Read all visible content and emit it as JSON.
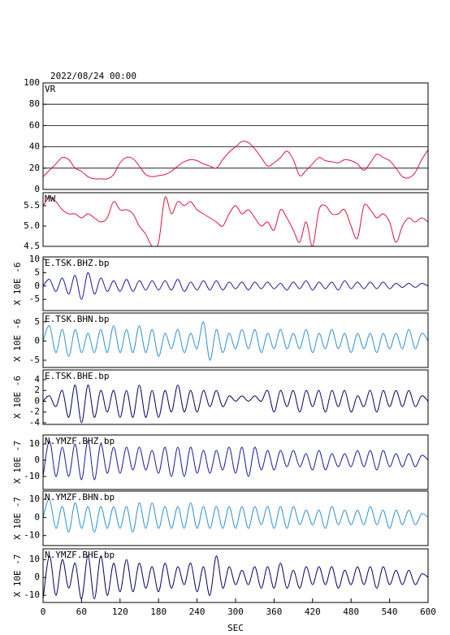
{
  "chart_data": [
    {
      "type": "line",
      "title": "2022/08/24 00:00",
      "label": "VR",
      "color": "#dc143c",
      "grid": true,
      "x": [
        0,
        10,
        20,
        30,
        40,
        50,
        60,
        70,
        80,
        90,
        100,
        110,
        120,
        130,
        140,
        150,
        160,
        170,
        180,
        190,
        200,
        210,
        220,
        230,
        240,
        250,
        260,
        270,
        280,
        290,
        300,
        310,
        320,
        330,
        340,
        350,
        360,
        370,
        380,
        390,
        400,
        410,
        420,
        430,
        440,
        450,
        460,
        470,
        480,
        490,
        500,
        510,
        520,
        530,
        540,
        550,
        560,
        570,
        580,
        590,
        600
      ],
      "values": [
        12,
        18,
        24,
        30,
        28,
        20,
        17,
        12,
        10,
        10,
        10,
        14,
        25,
        30,
        29,
        22,
        14,
        12,
        13,
        14,
        17,
        22,
        26,
        28,
        27,
        24,
        22,
        20,
        28,
        35,
        40,
        45,
        44,
        38,
        30,
        22,
        25,
        30,
        36,
        28,
        13,
        18,
        24,
        30,
        27,
        26,
        25,
        28,
        27,
        24,
        18,
        25,
        33,
        30,
        27,
        20,
        12,
        11,
        16,
        28,
        37
      ],
      "xlim": [
        0,
        600
      ],
      "ylim": [
        0,
        100
      ],
      "yticks": [
        0,
        20,
        40,
        60,
        80,
        100
      ]
    },
    {
      "type": "line",
      "label": "MW",
      "color": "#dc143c",
      "x": [
        0,
        10,
        20,
        30,
        40,
        50,
        60,
        70,
        80,
        90,
        100,
        110,
        120,
        130,
        140,
        150,
        160,
        170,
        180,
        190,
        200,
        210,
        220,
        230,
        240,
        250,
        260,
        270,
        280,
        290,
        300,
        310,
        320,
        330,
        340,
        350,
        360,
        370,
        380,
        390,
        400,
        410,
        420,
        430,
        440,
        450,
        460,
        470,
        480,
        490,
        500,
        510,
        520,
        530,
        540,
        550,
        560,
        570,
        580,
        590,
        600
      ],
      "values": [
        5.5,
        5.7,
        5.6,
        5.4,
        5.3,
        5.3,
        5.2,
        5.3,
        5.2,
        5.1,
        5.2,
        5.6,
        5.4,
        5.4,
        5.3,
        5.0,
        4.8,
        4.5,
        4.6,
        5.7,
        5.3,
        5.6,
        5.5,
        5.6,
        5.4,
        5.3,
        5.2,
        5.1,
        5.0,
        5.3,
        5.5,
        5.3,
        5.4,
        5.2,
        5.0,
        5.1,
        4.9,
        5.4,
        5.2,
        4.9,
        4.6,
        5.1,
        4.5,
        5.4,
        5.5,
        5.3,
        5.3,
        5.4,
        5.0,
        4.7,
        5.5,
        5.4,
        5.2,
        5.3,
        5.1,
        4.6,
        5.0,
        5.2,
        5.1,
        5.2,
        5.1
      ],
      "xlim": [
        0,
        600
      ],
      "ylim": [
        4.5,
        5.82
      ],
      "yticks": [
        4.5,
        {
          "value": 5,
          "label": "5.0"
        },
        5.5
      ]
    },
    {
      "type": "line",
      "label": "E.TSK.BHZ.bp",
      "ylabel": "X 10E -6",
      "color": "#1a1a9a",
      "x": [
        0,
        10,
        20,
        30,
        40,
        50,
        60,
        70,
        80,
        90,
        100,
        110,
        120,
        130,
        140,
        150,
        160,
        170,
        180,
        190,
        200,
        210,
        220,
        230,
        240,
        250,
        260,
        270,
        280,
        290,
        300,
        310,
        320,
        330,
        340,
        350,
        360,
        370,
        380,
        390,
        400,
        410,
        420,
        430,
        440,
        450,
        460,
        470,
        480,
        490,
        500,
        510,
        520,
        530,
        540,
        550,
        560,
        570,
        580,
        590,
        600
      ],
      "values": [
        0,
        2.5,
        -2,
        3,
        -3,
        4,
        -5,
        5,
        -3,
        3,
        -2,
        2,
        -2,
        2.5,
        -2,
        2,
        -1.5,
        2,
        -1.5,
        2,
        -1.5,
        2.5,
        -2,
        1.5,
        -1.5,
        2,
        -1.5,
        2,
        -1.5,
        1.5,
        -1,
        1.5,
        -1.5,
        1.5,
        -1,
        1.5,
        -1,
        1,
        -1.5,
        1.5,
        -1,
        2,
        -1.5,
        1.5,
        -1,
        1.5,
        -1.5,
        2,
        -1,
        1.5,
        -1,
        1.5,
        -1,
        1.5,
        -1,
        1,
        -0.5,
        1,
        -0.5,
        1,
        0
      ],
      "xlim": [
        0,
        600
      ],
      "ylim": [
        -9.2,
        10.9
      ],
      "yticks": [
        -5,
        0,
        5,
        10
      ]
    },
    {
      "type": "line",
      "label": "E.TSK.BHN.bp",
      "ylabel": "X 10E -6",
      "color": "#2f8fd0",
      "x": [
        0,
        10,
        20,
        30,
        40,
        50,
        60,
        70,
        80,
        90,
        100,
        110,
        120,
        130,
        140,
        150,
        160,
        170,
        180,
        190,
        200,
        210,
        220,
        230,
        240,
        250,
        260,
        270,
        280,
        290,
        300,
        310,
        320,
        330,
        340,
        350,
        360,
        370,
        380,
        390,
        400,
        410,
        420,
        430,
        440,
        450,
        460,
        470,
        480,
        490,
        500,
        510,
        520,
        530,
        540,
        550,
        560,
        570,
        580,
        590,
        600
      ],
      "values": [
        0,
        4,
        -3,
        3,
        -4,
        3,
        -3,
        2,
        -3,
        3,
        -3,
        4,
        -3,
        3,
        -3,
        4,
        -3,
        3,
        -4,
        2,
        -2,
        3,
        -3,
        2,
        -2,
        5,
        -5,
        3,
        -3,
        2,
        -2,
        3,
        -2,
        3,
        -3,
        2,
        -2,
        3,
        -2,
        2,
        -2,
        3,
        -3,
        2,
        -2,
        3,
        -2,
        2,
        -3,
        2,
        -2,
        2,
        -3,
        2,
        -2,
        2,
        -2,
        3,
        -2,
        2,
        0
      ],
      "xlim": [
        0,
        600
      ],
      "ylim": [
        -6.9,
        7.3
      ],
      "yticks": [
        -5,
        0,
        5
      ]
    },
    {
      "type": "line",
      "label": "E.TSK.BHE.bp",
      "ylabel": "X 10E -6",
      "color": "#000060",
      "x": [
        0,
        10,
        20,
        30,
        40,
        50,
        60,
        70,
        80,
        90,
        100,
        110,
        120,
        130,
        140,
        150,
        160,
        170,
        180,
        190,
        200,
        210,
        220,
        230,
        240,
        250,
        260,
        270,
        280,
        290,
        300,
        310,
        320,
        330,
        340,
        350,
        360,
        370,
        380,
        390,
        400,
        410,
        420,
        430,
        440,
        450,
        460,
        470,
        480,
        490,
        500,
        510,
        520,
        530,
        540,
        550,
        560,
        570,
        580,
        590,
        600
      ],
      "values": [
        0,
        1,
        -1,
        2,
        -3,
        3,
        -4,
        3,
        -3,
        2,
        -2,
        2,
        -3,
        2,
        -3,
        3,
        -3,
        2,
        -3,
        2,
        -2,
        3,
        -2,
        2,
        -2,
        2,
        -1,
        2,
        -1,
        1,
        0,
        1,
        0,
        1,
        0,
        2,
        -2,
        2,
        -1,
        2,
        -2,
        2,
        -1,
        2,
        -2,
        2,
        -1,
        2,
        -2,
        1,
        -1,
        2,
        -2,
        2,
        -1,
        2,
        -1,
        2,
        -1,
        1,
        0
      ],
      "xlim": [
        0,
        600
      ],
      "ylim": [
        -4.3,
        5.8
      ],
      "yticks": [
        -4,
        -2,
        0,
        2,
        4
      ]
    },
    {
      "type": "line",
      "label": "N.YMZF.BHZ.bp",
      "ylabel": "X 10E -7",
      "color": "#1a1a9a",
      "x": [
        0,
        10,
        20,
        30,
        40,
        50,
        60,
        70,
        80,
        90,
        100,
        110,
        120,
        130,
        140,
        150,
        160,
        170,
        180,
        190,
        200,
        210,
        220,
        230,
        240,
        250,
        260,
        270,
        280,
        290,
        300,
        310,
        320,
        330,
        340,
        350,
        360,
        370,
        380,
        390,
        400,
        410,
        420,
        430,
        440,
        450,
        460,
        470,
        480,
        490,
        500,
        510,
        520,
        530,
        540,
        550,
        560,
        570,
        580,
        590,
        600
      ],
      "values": [
        -10,
        12,
        -10,
        8,
        -10,
        10,
        -12,
        12,
        -12,
        10,
        -8,
        8,
        -8,
        8,
        -6,
        8,
        -6,
        6,
        -8,
        8,
        -10,
        8,
        -10,
        8,
        -8,
        6,
        -8,
        6,
        -6,
        8,
        -8,
        8,
        -10,
        8,
        -6,
        6,
        -6,
        6,
        -4,
        6,
        -4,
        4,
        -6,
        6,
        -6,
        4,
        -4,
        4,
        -4,
        6,
        -4,
        6,
        -6,
        6,
        -4,
        4,
        -4,
        4,
        -4,
        3,
        0
      ],
      "xlim": [
        0,
        600
      ],
      "ylim": [
        -18,
        15.5
      ],
      "yticks": [
        -10,
        0,
        10
      ]
    },
    {
      "type": "line",
      "label": "N.YMZF.BHN.bp",
      "ylabel": "X 10E -7",
      "color": "#2f8fd0",
      "x": [
        0,
        10,
        20,
        30,
        40,
        50,
        60,
        70,
        80,
        90,
        100,
        110,
        120,
        130,
        140,
        150,
        160,
        170,
        180,
        190,
        200,
        210,
        220,
        230,
        240,
        250,
        260,
        270,
        280,
        290,
        300,
        310,
        320,
        330,
        340,
        350,
        360,
        370,
        380,
        390,
        400,
        410,
        420,
        430,
        440,
        450,
        460,
        470,
        480,
        490,
        500,
        510,
        520,
        530,
        540,
        550,
        560,
        570,
        580,
        590,
        600
      ],
      "values": [
        0,
        10,
        -6,
        6,
        -8,
        8,
        -6,
        6,
        -8,
        6,
        -6,
        6,
        -6,
        6,
        -8,
        8,
        -6,
        8,
        -6,
        6,
        -6,
        6,
        -6,
        8,
        -6,
        6,
        -6,
        6,
        -6,
        6,
        -6,
        6,
        -6,
        6,
        -4,
        6,
        -6,
        6,
        -6,
        6,
        -4,
        4,
        -4,
        4,
        -6,
        6,
        -4,
        4,
        -4,
        4,
        -4,
        6,
        -4,
        4,
        -6,
        4,
        -4,
        4,
        -4,
        2,
        0
      ],
      "xlim": [
        0,
        600
      ],
      "ylim": [
        -15.5,
        14.5
      ],
      "yticks": [
        -10,
        0,
        10
      ]
    },
    {
      "type": "line",
      "label": "N.YMZF.BHE.bp",
      "ylabel": "X 10E -7",
      "color": "#000060",
      "xlabel": "SEC",
      "x": [
        0,
        10,
        20,
        30,
        40,
        50,
        60,
        70,
        80,
        90,
        100,
        110,
        120,
        130,
        140,
        150,
        160,
        170,
        180,
        190,
        200,
        210,
        220,
        230,
        240,
        250,
        260,
        270,
        280,
        290,
        300,
        310,
        320,
        330,
        340,
        350,
        360,
        370,
        380,
        390,
        400,
        410,
        420,
        430,
        440,
        450,
        460,
        470,
        480,
        490,
        500,
        510,
        520,
        530,
        540,
        550,
        560,
        570,
        580,
        590,
        600
      ],
      "values": [
        -12,
        12,
        -10,
        10,
        -6,
        8,
        -12,
        12,
        -12,
        12,
        -10,
        8,
        -8,
        10,
        -8,
        8,
        -6,
        6,
        -8,
        8,
        -6,
        6,
        -4,
        8,
        -8,
        6,
        -10,
        12,
        -6,
        6,
        -4,
        4,
        -4,
        6,
        -6,
        6,
        -6,
        8,
        -6,
        4,
        -6,
        6,
        -4,
        6,
        -4,
        6,
        -6,
        4,
        -4,
        6,
        -4,
        6,
        -6,
        6,
        -4,
        4,
        -4,
        4,
        -4,
        2,
        0
      ],
      "xlim": [
        0,
        600
      ],
      "ylim": [
        -14,
        16
      ],
      "yticks": [
        -10,
        0,
        10
      ],
      "xticks": [
        0,
        60,
        120,
        180,
        240,
        300,
        360,
        420,
        480,
        540,
        600
      ]
    }
  ]
}
